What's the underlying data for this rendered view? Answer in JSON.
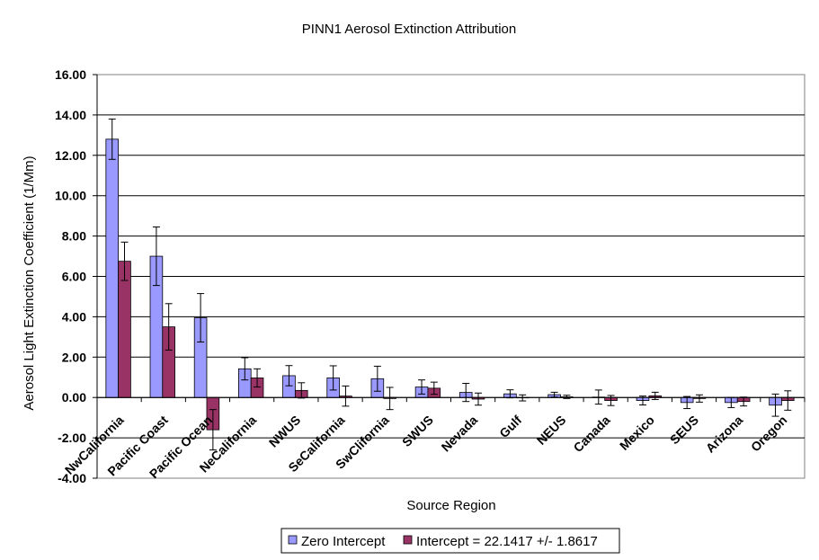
{
  "chart_data": {
    "type": "bar",
    "title": "PINN1 Aerosol Extinction Attribution",
    "xlabel": "Source Region",
    "ylabel": "Aerosol Light Extinction Coefficient (1/Mm)",
    "ylim": [
      -4.0,
      16.0
    ],
    "ytick_step": 2.0,
    "ytick_labels": [
      "-4.00",
      "-2.00",
      "0.00",
      "2.00",
      "4.00",
      "6.00",
      "8.00",
      "10.00",
      "12.00",
      "14.00",
      "16.00"
    ],
    "grid": true,
    "legend_position": "bottom",
    "categories": [
      "NwCalifornia",
      "Pacific Coast",
      "Pacific Ocean",
      "NeCalifornia",
      "NWUS",
      "SeCalifornia",
      "SwClifornia",
      "SWUS",
      "Nevada",
      "Gulf",
      "NEUS",
      "Canada",
      "Mexico",
      "SEUS",
      "Arizona",
      "Oregon"
    ],
    "series": [
      {
        "name": "Zero Intercept",
        "color": "#9999ff",
        "values": [
          12.8,
          7.0,
          3.95,
          1.42,
          1.08,
          0.97,
          0.93,
          0.52,
          0.25,
          0.18,
          0.14,
          0.02,
          -0.15,
          -0.25,
          -0.25,
          -0.38
        ],
        "errors": [
          1.0,
          1.45,
          1.2,
          0.55,
          0.5,
          0.6,
          0.62,
          0.35,
          0.45,
          0.2,
          0.12,
          0.35,
          0.22,
          0.3,
          0.25,
          0.55
        ]
      },
      {
        "name": "Intercept = 22.1417 +/- 1.8617",
        "color": "#993366",
        "values": [
          6.75,
          3.5,
          -1.6,
          0.97,
          0.35,
          0.07,
          -0.05,
          0.46,
          -0.08,
          -0.02,
          0.03,
          -0.15,
          0.08,
          -0.05,
          -0.2,
          -0.15
        ],
        "errors": [
          0.95,
          1.15,
          1.0,
          0.45,
          0.38,
          0.5,
          0.55,
          0.3,
          0.3,
          0.15,
          0.08,
          0.25,
          0.18,
          0.18,
          0.22,
          0.48
        ]
      }
    ]
  }
}
